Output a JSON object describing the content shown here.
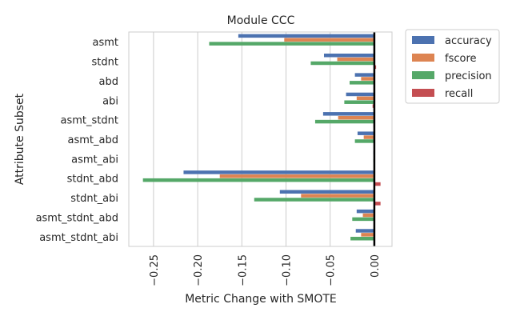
{
  "chart_data": {
    "type": "bar",
    "orientation": "horizontal",
    "title": "Module CCC",
    "xlabel": "Metric Change with SMOTE",
    "ylabel": "Attribute Subset",
    "xlim": [
      -0.278,
      0.02
    ],
    "xticks": [
      -0.25,
      -0.2,
      -0.15,
      -0.1,
      -0.05,
      0.0
    ],
    "xtick_labels": [
      "−0.25",
      "−0.20",
      "−0.15",
      "−0.10",
      "−0.05",
      "0.00"
    ],
    "grid": true,
    "legend_position": "outside-top-right",
    "categories": [
      "asmt",
      "stdnt",
      "abd",
      "abi",
      "asmt_stdnt",
      "asmt_abd",
      "asmt_abi",
      "stdnt_abd",
      "stdnt_abi",
      "asmt_stdnt_abd",
      "asmt_stdnt_abi"
    ],
    "series": [
      {
        "name": "accuracy",
        "color": "#4c72b0",
        "values": [
          -0.154,
          -0.057,
          -0.022,
          -0.032,
          -0.058,
          -0.019,
          -0.001,
          -0.216,
          -0.107,
          -0.02,
          -0.021
        ]
      },
      {
        "name": "fscore",
        "color": "#dd8452",
        "values": [
          -0.102,
          -0.042,
          -0.015,
          -0.02,
          -0.041,
          -0.012,
          0.0,
          -0.175,
          -0.083,
          -0.013,
          -0.015
        ]
      },
      {
        "name": "precision",
        "color": "#55a868",
        "values": [
          -0.187,
          -0.072,
          -0.028,
          -0.034,
          -0.067,
          -0.022,
          -0.001,
          -0.262,
          -0.136,
          -0.025,
          -0.027
        ]
      },
      {
        "name": "recall",
        "color": "#c44e52",
        "values": [
          0.0,
          0.002,
          0.0,
          -0.002,
          -0.001,
          0.0,
          0.0,
          0.007,
          0.007,
          0.0,
          0.0
        ]
      }
    ]
  }
}
